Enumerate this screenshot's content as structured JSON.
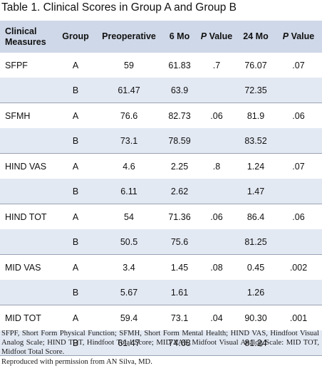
{
  "title": {
    "label": "Table 1.",
    "text": "Clinical Scores in Group A and Group B"
  },
  "columns": {
    "measure_line1": "Clinical",
    "measure_line2": "Measures",
    "group": "Group",
    "preop": "Preoperative",
    "mo6": "6 Mo",
    "p1_italic": "P",
    "p1_rest": "Value",
    "mo24": "24 Mo",
    "p2_italic": "P",
    "p2_rest": "Value"
  },
  "rows": [
    {
      "measure": "SFPF",
      "group": "A",
      "preop": "59",
      "mo6": "61.83",
      "p6": ".7",
      "mo24": "76.07",
      "p24": ".07"
    },
    {
      "measure": "",
      "group": "B",
      "preop": "61.47",
      "mo6": "63.9",
      "p6": "",
      "mo24": "72.35",
      "p24": ""
    },
    {
      "measure": "SFMH",
      "group": "A",
      "preop": "76.6",
      "mo6": "82.73",
      "p6": ".06",
      "mo24": "81.9",
      "p24": ".06"
    },
    {
      "measure": "",
      "group": "B",
      "preop": "73.1",
      "mo6": "78.59",
      "p6": "",
      "mo24": "83.52",
      "p24": ""
    },
    {
      "measure": "HIND VAS",
      "group": "A",
      "preop": "4.6",
      "mo6": "2.25",
      "p6": ".8",
      "mo24": "1.24",
      "p24": ".07"
    },
    {
      "measure": "",
      "group": "B",
      "preop": "6.11",
      "mo6": "2.62",
      "p6": "",
      "mo24": "1.47",
      "p24": ""
    },
    {
      "measure": "HIND TOT",
      "group": "A",
      "preop": "54",
      "mo6": "71.36",
      "p6": ".06",
      "mo24": "86.4",
      "p24": ".06"
    },
    {
      "measure": "",
      "group": "B",
      "preop": "50.5",
      "mo6": "75.6",
      "p6": "",
      "mo24": "81.25",
      "p24": ""
    },
    {
      "measure": "MID VAS",
      "group": "A",
      "preop": "3.4",
      "mo6": "1.45",
      "p6": ".08",
      "mo24": "0.45",
      "p24": ".002"
    },
    {
      "measure": "",
      "group": "B",
      "preop": "5.67",
      "mo6": "1.61",
      "p6": "",
      "mo24": "1.26",
      "p24": ""
    },
    {
      "measure": "MID TOT",
      "group": "A",
      "preop": "59.4",
      "mo6": "73.1",
      "p6": ".04",
      "mo24": "90.30",
      "p24": ".001"
    },
    {
      "measure": "",
      "group": "B",
      "preop": "61.47",
      "mo6": "74.68",
      "p6": "",
      "mo24": "81.24",
      "p24": ""
    }
  ],
  "footnote": "SFPF, Short Form Physical Function; SFMH, Short Form Mental Health; HIND VAS, Hindfoot Visual Analog Scale; HIND TOT, Hindfoot Total Score; MID VAS, Midfoot Visual Analog Scale: MID TOT, Midfoot Total Score.",
  "credit": "Reproduced with permission from AN Silva, MD.",
  "colors": {
    "header_bg": "#cfd8e8",
    "alt_row_bg": "#e3e9f3",
    "row_rule": "#9aa3b2"
  }
}
